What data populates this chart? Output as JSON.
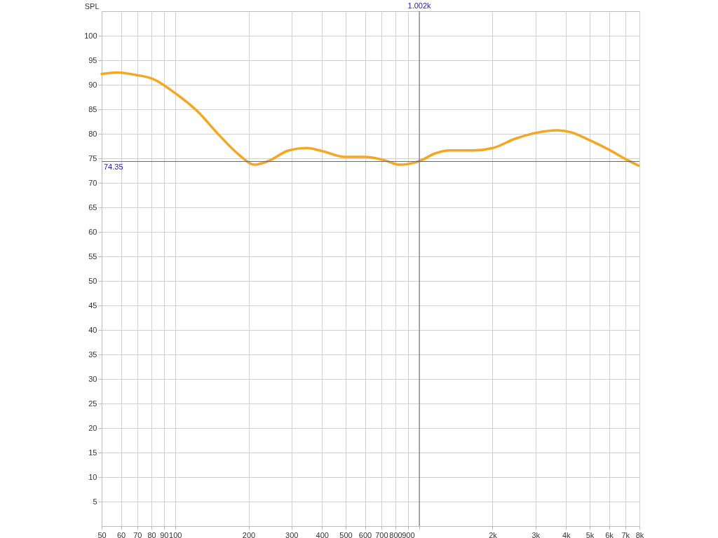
{
  "chart_data": {
    "type": "line",
    "ylabel": "SPL",
    "log": "x",
    "grid": true,
    "xlim": [
      50,
      8000
    ],
    "ylim": [
      0,
      105
    ],
    "xticks": [
      50,
      60,
      70,
      80,
      90,
      100,
      200,
      300,
      400,
      500,
      600,
      700,
      800,
      900,
      {
        "value": 1000,
        "label": null
      },
      {
        "value": 2000,
        "label": "2k"
      },
      {
        "value": 3000,
        "label": "3k"
      },
      {
        "value": 4000,
        "label": "4k"
      },
      {
        "value": 5000,
        "label": "5k"
      },
      {
        "value": 6000,
        "label": "6k"
      },
      {
        "value": 7000,
        "label": "7k"
      },
      {
        "value": 8000,
        "label": "8k"
      }
    ],
    "yticks": [
      5,
      10,
      15,
      20,
      25,
      30,
      35,
      40,
      45,
      50,
      55,
      60,
      65,
      70,
      75,
      80,
      85,
      90,
      95,
      100
    ],
    "series": [
      {
        "color": "#f5a623",
        "x": [
          50,
          58,
          69,
          81,
          100,
          124,
          151,
          184,
          211,
          240,
          292,
          345,
          406,
          495,
          603,
          710,
          837,
          1000,
          1163,
          1327,
          1670,
          2007,
          2478,
          3020,
          3679,
          4197,
          4946,
          6034,
          7105,
          7943
        ],
        "values": [
          92.2,
          92.5,
          92.0,
          91.2,
          88.3,
          84.5,
          79.8,
          75.6,
          73.7,
          74.4,
          76.6,
          77.1,
          76.4,
          75.3,
          75.3,
          74.7,
          73.7,
          74.4,
          76.0,
          76.6,
          76.6,
          77.1,
          79.0,
          80.2,
          80.7,
          80.3,
          78.8,
          76.7,
          74.7,
          73.5
        ]
      }
    ],
    "ref_lines": [
      {
        "axis": "y",
        "value": 74.35,
        "label": "74.35",
        "color": "#666666"
      },
      {
        "axis": "x",
        "value": 1002,
        "label": "1.002k",
        "color": "#666666"
      }
    ]
  }
}
